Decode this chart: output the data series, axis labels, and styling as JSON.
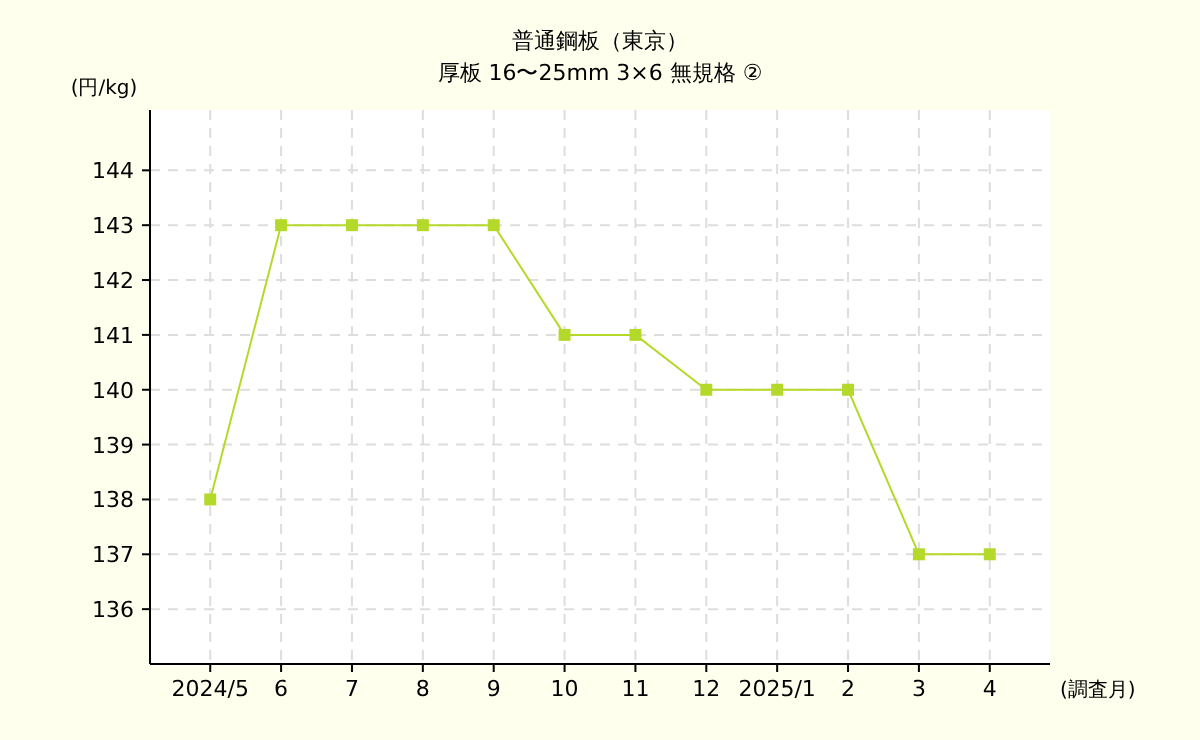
{
  "chart_data": {
    "type": "line",
    "title": "普通鋼板（東京）",
    "subtitle": "厚板 16〜25mm 3×6 無規格 ②",
    "ylabel": "(円/kg)",
    "xlabel": "(調査月)",
    "categories": [
      "2024/5",
      "6",
      "7",
      "8",
      "9",
      "10",
      "11",
      "12",
      "2025/1",
      "2",
      "3",
      "4"
    ],
    "values": [
      138,
      143,
      143,
      143,
      143,
      141,
      141,
      140,
      140,
      140,
      137,
      137
    ],
    "color": "#b5d92b",
    "ylim": [
      135,
      145.1
    ],
    "yticks": [
      136,
      137,
      138,
      139,
      140,
      141,
      142,
      143,
      144
    ],
    "grid": true,
    "marker": "square"
  }
}
